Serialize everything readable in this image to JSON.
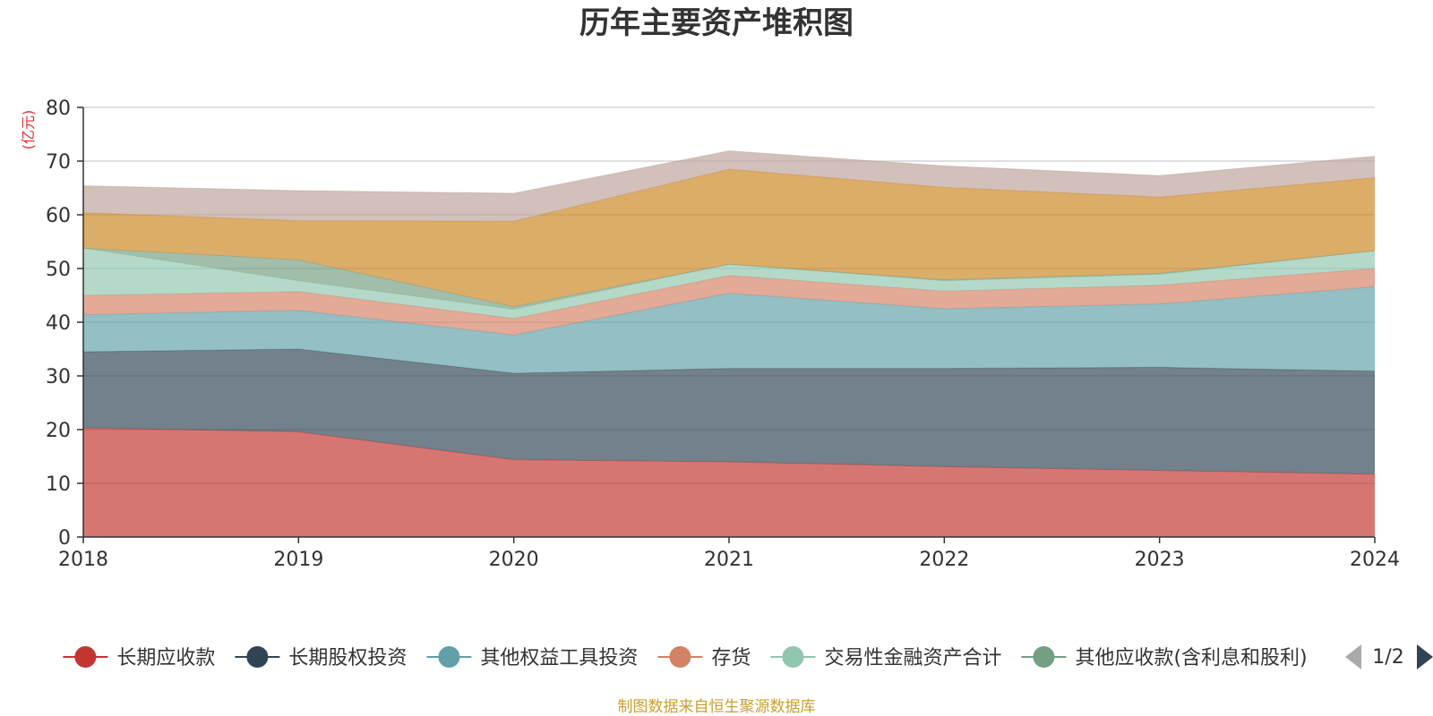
{
  "chart_data": {
    "type": "area",
    "stacked": true,
    "title": "历年主要资产堆积图",
    "unit": "(亿元)",
    "x": [
      "2018",
      "2019",
      "2020",
      "2021",
      "2022",
      "2023",
      "2024"
    ],
    "ylim": [
      0,
      80
    ],
    "yticks": [
      "0",
      "10",
      "20",
      "30",
      "40",
      "50",
      "60",
      "70",
      "80"
    ],
    "grid": true,
    "series": [
      {
        "name": "长期应收款",
        "color": "#c23531",
        "values": [
          20.3,
          19.6,
          14.4,
          14.0,
          13.1,
          12.4,
          11.7
        ]
      },
      {
        "name": "长期股权投资",
        "color": "#2f4554",
        "values": [
          14.2,
          15.4,
          16.1,
          17.4,
          18.3,
          19.2,
          19.2
        ]
      },
      {
        "name": "其他权益工具投资",
        "color": "#61a0a8",
        "values": [
          6.9,
          7.2,
          7.1,
          14.0,
          11.1,
          11.8,
          15.7
        ]
      },
      {
        "name": "存货",
        "color": "#d48265",
        "values": [
          3.6,
          3.5,
          3.1,
          3.3,
          3.3,
          3.5,
          3.4
        ]
      },
      {
        "name": "交易性金融资产合计",
        "color": "#91c7ae",
        "values": [
          8.8,
          2.0,
          1.7,
          2.1,
          1.9,
          2.0,
          3.3
        ]
      },
      {
        "name": "其他应收款(含利息和股利)",
        "color": "#749f83",
        "values": [
          0.0,
          3.9,
          0.5,
          0.0,
          0.2,
          0.2,
          0.0
        ]
      },
      {
        "name": "",
        "color": "#ca8622",
        "values": [
          6.6,
          7.3,
          15.9,
          17.7,
          17.2,
          14.2,
          13.6
        ]
      },
      {
        "name": "",
        "color": "#bda29a",
        "values": [
          5.0,
          5.6,
          5.2,
          3.4,
          4.0,
          4.0,
          4.0
        ]
      }
    ],
    "legend_position": "bottom",
    "visible_legend_count": 6
  },
  "legend": {
    "page_indicator": "1/2",
    "prev_icon": "triangle-left-icon",
    "next_icon": "triangle-right-icon"
  },
  "source_note": "制图数据来自恒生聚源数据库"
}
